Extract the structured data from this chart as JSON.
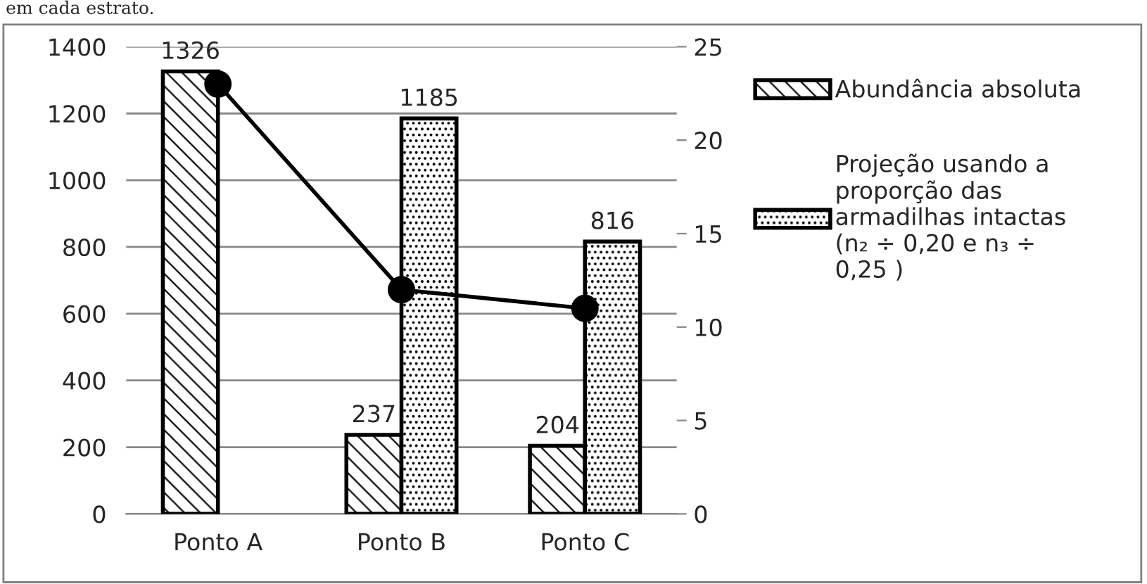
{
  "chart_data": {
    "type": "bar",
    "annotations": [
      "em cada estrato."
    ],
    "categories": [
      "Ponto A",
      "Ponto B",
      "Ponto C"
    ],
    "series": [
      {
        "name": "Abundância absoluta",
        "color": "#000000",
        "values": [
          1326,
          237,
          204
        ],
        "value_labels": [
          "1326",
          "237",
          "204"
        ]
      },
      {
        "name": "Projeção usando a proporção das armadilhas intactas (n₂ ÷ 0,20 e n₃ ÷ 0,25 )",
        "color": "#000000",
        "values": [
          null,
          1185,
          816
        ],
        "value_labels": [
          null,
          "1185",
          "816"
        ]
      },
      {
        "type": "line",
        "axis": "y2",
        "color": "#000000",
        "marker": "circle",
        "line_style": "solid",
        "values": [
          23,
          12,
          11
        ]
      }
    ],
    "ylim": [
      0,
      1400
    ],
    "yticks": [
      0,
      200,
      400,
      600,
      800,
      1000,
      1200,
      1400
    ],
    "y2lim": [
      0,
      25
    ],
    "y2ticks": [
      0,
      5,
      10,
      15,
      20,
      25
    ],
    "grid": "y",
    "legend": "right"
  }
}
